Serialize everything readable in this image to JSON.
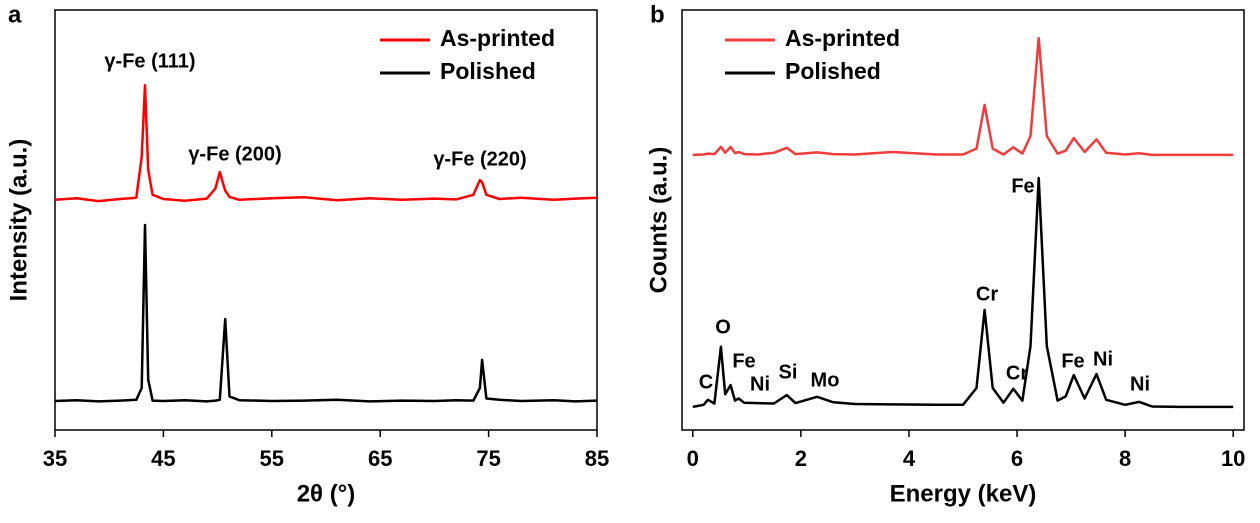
{
  "chart_data": [
    {
      "type": "line",
      "panel_label": "a",
      "xlabel": "2θ (°)",
      "ylabel": "Intensity (a.u.)",
      "xlim": [
        35,
        85
      ],
      "xticks": [
        35,
        45,
        55,
        65,
        75,
        85
      ],
      "ylim": [
        0,
        100
      ],
      "legend": "upper right",
      "annotations": [
        "γ-Fe (111)",
        "γ-Fe (200)",
        "γ-Fe (220)"
      ],
      "x": [
        35,
        37,
        39,
        41,
        42.5,
        43,
        43.3,
        43.6,
        44,
        45,
        47,
        49,
        49.8,
        50.2,
        50.7,
        51.1,
        52,
        55,
        58,
        61,
        64,
        67,
        70,
        72,
        73.6,
        74.2,
        74.4,
        74.8,
        76,
        78,
        81,
        83,
        85
      ],
      "series": [
        {
          "name": "As-printed",
          "color": "#ff0000",
          "values": [
            54.8,
            55.2,
            54.5,
            55.0,
            55.3,
            65,
            82.1,
            62,
            56,
            55.0,
            54.6,
            55.1,
            57.5,
            61.4,
            57,
            55.5,
            54.8,
            55.2,
            55.4,
            54.7,
            55.2,
            54.8,
            55.1,
            54.9,
            56,
            59.5,
            59,
            56,
            55.0,
            55.3,
            54.8,
            55.1,
            55.3
          ]
        },
        {
          "name": "Polished",
          "color": "#000000",
          "values": [
            6.9,
            7.1,
            6.8,
            7.0,
            7.2,
            10,
            48.8,
            12,
            7,
            6.9,
            7.1,
            6.8,
            7.0,
            7.2,
            26.4,
            8,
            7.1,
            6.9,
            7.0,
            7.2,
            6.8,
            7.0,
            6.9,
            7.1,
            7.0,
            10,
            16.7,
            7.5,
            7.2,
            6.9,
            7.1,
            6.8,
            7.0
          ]
        }
      ]
    },
    {
      "type": "line",
      "panel_label": "b",
      "xlabel": "Energy (keV)",
      "ylabel": "Counts (a.u.)",
      "xlim": [
        -0.2,
        10.2
      ],
      "xticks": [
        0,
        2,
        4,
        6,
        8,
        10
      ],
      "ylim": [
        0,
        100
      ],
      "legend": "upper left",
      "annotations": [
        "C",
        "O",
        "Fe",
        "Ni",
        "Si",
        "Mo",
        "Cr",
        "Cr",
        "Fe",
        "Fe",
        "Ni",
        "Ni"
      ],
      "x": [
        0,
        0.2,
        0.28,
        0.4,
        0.52,
        0.6,
        0.7,
        0.78,
        0.85,
        0.95,
        1.2,
        1.5,
        1.74,
        1.9,
        2.3,
        2.6,
        3.0,
        3.7,
        4.5,
        5.0,
        5.25,
        5.4,
        5.55,
        5.75,
        5.93,
        6.1,
        6.25,
        6.4,
        6.55,
        6.75,
        6.9,
        7.05,
        7.25,
        7.47,
        7.65,
        8.0,
        8.26,
        8.5,
        9,
        10
      ],
      "series": [
        {
          "name": "As-printed",
          "color": "#f03c3c",
          "values": [
            65.5,
            65.6,
            65.8,
            65.7,
            67.4,
            66.0,
            67.4,
            65.9,
            66.2,
            65.7,
            65.6,
            66.0,
            67.2,
            65.7,
            66.1,
            65.7,
            65.6,
            66.2,
            65.6,
            65.6,
            67,
            77.4,
            67,
            65.6,
            67.3,
            65.8,
            70,
            93.3,
            70,
            65.8,
            66.5,
            69.5,
            66.2,
            69.2,
            66.0,
            65.6,
            65.9,
            65.5,
            65.5,
            65.5
          ]
        },
        {
          "name": "Polished",
          "color": "#000000",
          "values": [
            5.5,
            6.0,
            7.2,
            6.3,
            19.8,
            8.5,
            10.7,
            7.0,
            7.5,
            6.5,
            6.4,
            6.3,
            8.3,
            6.4,
            7.9,
            6.6,
            6.2,
            6.1,
            6.0,
            6.0,
            10,
            28.6,
            10,
            6.5,
            9.8,
            7.0,
            20,
            60,
            20,
            7.0,
            8.0,
            13.1,
            7.5,
            13.3,
            7.2,
            6.0,
            6.7,
            5.6,
            5.5,
            5.5
          ]
        }
      ]
    }
  ]
}
